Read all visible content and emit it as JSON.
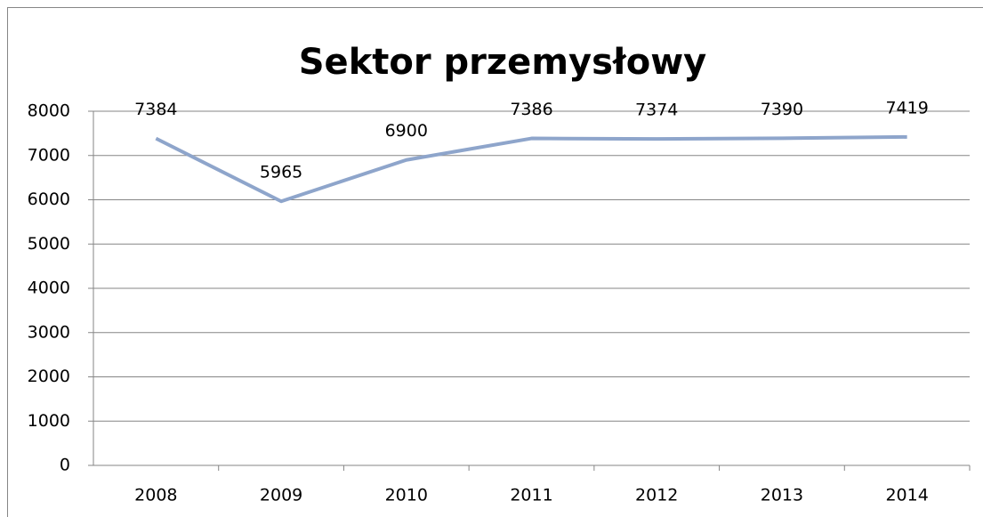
{
  "chart_data": {
    "type": "line",
    "title": "Sektor przemysłowy",
    "categories": [
      "2008",
      "2009",
      "2010",
      "2011",
      "2012",
      "2013",
      "2014"
    ],
    "series": [
      {
        "name": "Sektor przemysłowy",
        "color": "#8ea5cb",
        "values": [
          7384,
          5965,
          6900,
          7386,
          7374,
          7390,
          7419
        ]
      }
    ],
    "ylim": [
      0,
      8000
    ],
    "yticks": [
      0,
      1000,
      2000,
      3000,
      4000,
      5000,
      6000,
      7000,
      8000
    ],
    "grid": true,
    "data_labels": true
  }
}
